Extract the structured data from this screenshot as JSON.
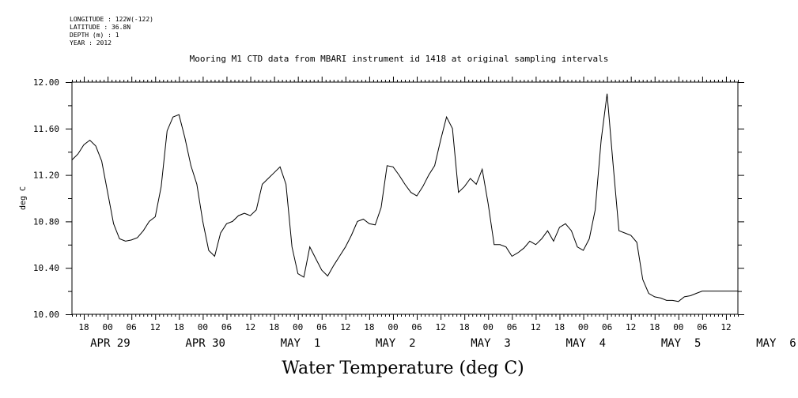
{
  "meta": {
    "longitude": "LONGITUDE : 122W(-122)",
    "latitude": "LATITUDE : 36.8N",
    "depth": "DEPTH (m) : 1",
    "year": "YEAR : 2012"
  },
  "chart_data": {
    "type": "line",
    "title": "Mooring M1 CTD data from MBARI instrument id 1418 at original sampling intervals",
    "xlabel": "Water Temperature (deg C)",
    "ylabel": "deg C",
    "ylim": [
      10.0,
      12.0
    ],
    "y_ticks": [
      "10.00",
      "10.40",
      "10.80",
      "11.20",
      "11.60",
      "12.00"
    ],
    "x_range_hours": [
      -9,
      159
    ],
    "x_hour_labels": [
      "18",
      "00",
      "06",
      "12",
      "18",
      "00",
      "06",
      "12",
      "18",
      "00",
      "06",
      "12",
      "18",
      "00",
      "06",
      "12",
      "18",
      "00",
      "06",
      "12",
      "18",
      "00",
      "06",
      "12",
      "18",
      "00",
      "06",
      "12"
    ],
    "x_day_labels": [
      "APR 29",
      "APR 30",
      "MAY  1",
      "MAY  2",
      "MAY  3",
      "MAY  4",
      "MAY  5",
      "MAY  6"
    ],
    "grid": false,
    "series": [
      {
        "x": [
          -9,
          -7.5,
          -6,
          -4.5,
          -3,
          -1.5,
          0,
          1.5,
          3,
          4.5,
          6,
          7.5,
          9,
          10.5,
          12,
          13.5,
          15,
          16.5,
          18,
          19.5,
          21,
          22.5,
          24,
          25.5,
          27,
          28.5,
          30,
          31.5,
          33,
          34.5,
          36,
          37.5,
          39,
          40.5,
          42,
          43.5,
          45,
          46.5,
          48,
          49.5,
          51,
          52.5,
          54,
          55.5,
          57,
          58.5,
          60,
          61.5,
          63,
          64.5,
          66,
          67.5,
          69,
          70.5,
          72,
          73.5,
          75,
          76.5,
          78,
          79.5,
          81,
          82.5,
          84,
          85.5,
          87,
          88.5,
          90,
          91.5,
          93,
          94.5,
          96,
          97.5,
          99,
          100.5,
          102,
          103.5,
          105,
          106.5,
          108,
          109.5,
          111,
          112.5,
          114,
          115.5,
          117,
          118.5,
          120,
          121.5,
          123,
          124.5,
          126,
          127.5,
          129,
          130.5,
          132,
          133.5,
          135,
          136.5,
          138,
          139.5,
          141,
          142.5,
          144,
          145.5,
          147,
          148.5,
          150,
          151.5,
          153,
          154.5,
          156,
          157.5,
          159
        ],
        "values": [
          11.33,
          11.38,
          11.46,
          11.5,
          11.45,
          11.32,
          11.05,
          10.78,
          10.65,
          10.63,
          10.64,
          10.66,
          10.72,
          10.8,
          10.84,
          11.1,
          11.58,
          11.7,
          11.72,
          11.52,
          11.28,
          11.12,
          10.8,
          10.55,
          10.5,
          10.7,
          10.78,
          10.8,
          10.85,
          10.87,
          10.85,
          10.9,
          11.12,
          11.17,
          11.22,
          11.27,
          11.12,
          10.58,
          10.35,
          10.32,
          10.58,
          10.48,
          10.38,
          10.33,
          10.42,
          10.5,
          10.58,
          10.68,
          10.8,
          10.82,
          10.78,
          10.77,
          10.92,
          11.28,
          11.27,
          11.2,
          11.12,
          11.05,
          11.02,
          11.1,
          11.2,
          11.28,
          11.5,
          11.7,
          11.6,
          11.05,
          11.1,
          11.17,
          11.12,
          11.25,
          10.95,
          10.6,
          10.6,
          10.58,
          10.5,
          10.53,
          10.57,
          10.63,
          10.6,
          10.65,
          10.72,
          10.63,
          10.75,
          10.78,
          10.72,
          10.58,
          10.55,
          10.65,
          10.9,
          11.5,
          11.9,
          11.3,
          10.72,
          10.7,
          10.68,
          10.62,
          10.3,
          10.18,
          10.15,
          10.14,
          10.12,
          10.12,
          10.11,
          10.15,
          10.16,
          10.18,
          10.2,
          10.2,
          10.2,
          10.2,
          10.2,
          10.2,
          10.2
        ]
      }
    ]
  }
}
